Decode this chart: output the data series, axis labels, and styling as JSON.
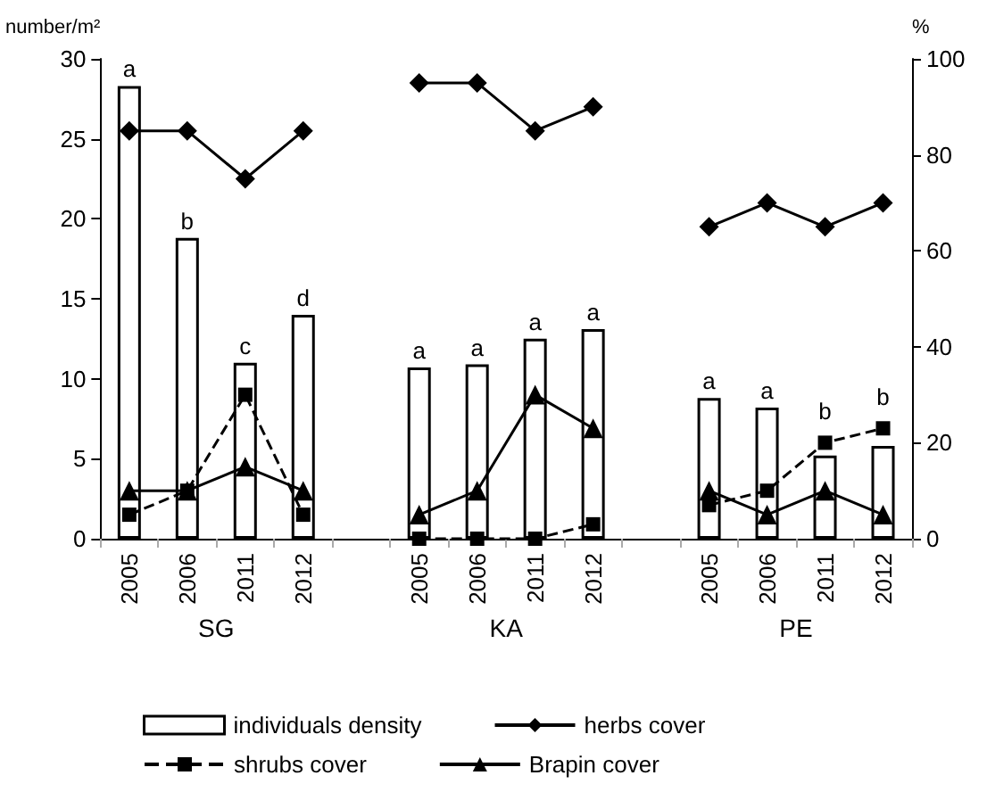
{
  "chart_data": {
    "type": "bar",
    "ylabel": "number/m²",
    "y2label": "%",
    "categories": [
      "2005",
      "2006",
      "2011",
      "2012",
      null,
      "2005",
      "2006",
      "2011",
      "2012",
      null,
      "2005",
      "2006",
      "2011",
      "2012"
    ],
    "series": [
      {
        "name": "individuals density",
        "color": "#ffffff",
        "values": [
          28.3,
          18.8,
          11,
          14,
          null,
          10.7,
          10.9,
          12.5,
          13.1,
          null,
          8.8,
          8.2,
          5.2,
          5.8
        ],
        "value_labels": [
          "a",
          "b",
          "c",
          "d",
          null,
          "a",
          "a",
          "a",
          "a",
          null,
          "a",
          "a",
          "b",
          "b"
        ]
      },
      {
        "name": "herbs cover",
        "type": "line",
        "axis": "y2",
        "color": "#000000",
        "marker": "diamond",
        "line_style": "solid",
        "values": [
          85,
          85,
          75,
          85,
          null,
          95,
          95,
          85,
          90,
          null,
          65,
          70,
          65,
          70
        ]
      },
      {
        "name": "shrubs cover",
        "type": "line",
        "axis": "y2",
        "color": "#000000",
        "marker": "square",
        "line_style": "dashed",
        "values": [
          5,
          10,
          30,
          5,
          null,
          0,
          0,
          0,
          3,
          null,
          7,
          10,
          20,
          23
        ]
      },
      {
        "name": "Brapin cover",
        "type": "line",
        "axis": "y2",
        "color": "#000000",
        "marker": "triangle",
        "line_style": "solid",
        "values": [
          10,
          10,
          15,
          10,
          null,
          5,
          10,
          30,
          23,
          null,
          10,
          5,
          10,
          5
        ]
      }
    ],
    "ylim": [
      0,
      30
    ],
    "yticks": [
      0,
      5,
      10,
      15,
      20,
      25,
      30
    ],
    "y2lim": [
      0,
      100
    ],
    "y2ticks": [
      0,
      20,
      40,
      60,
      80,
      100
    ],
    "annotations": [
      "SG",
      "KA",
      "PE"
    ],
    "grid": false,
    "legend": "bottom"
  }
}
